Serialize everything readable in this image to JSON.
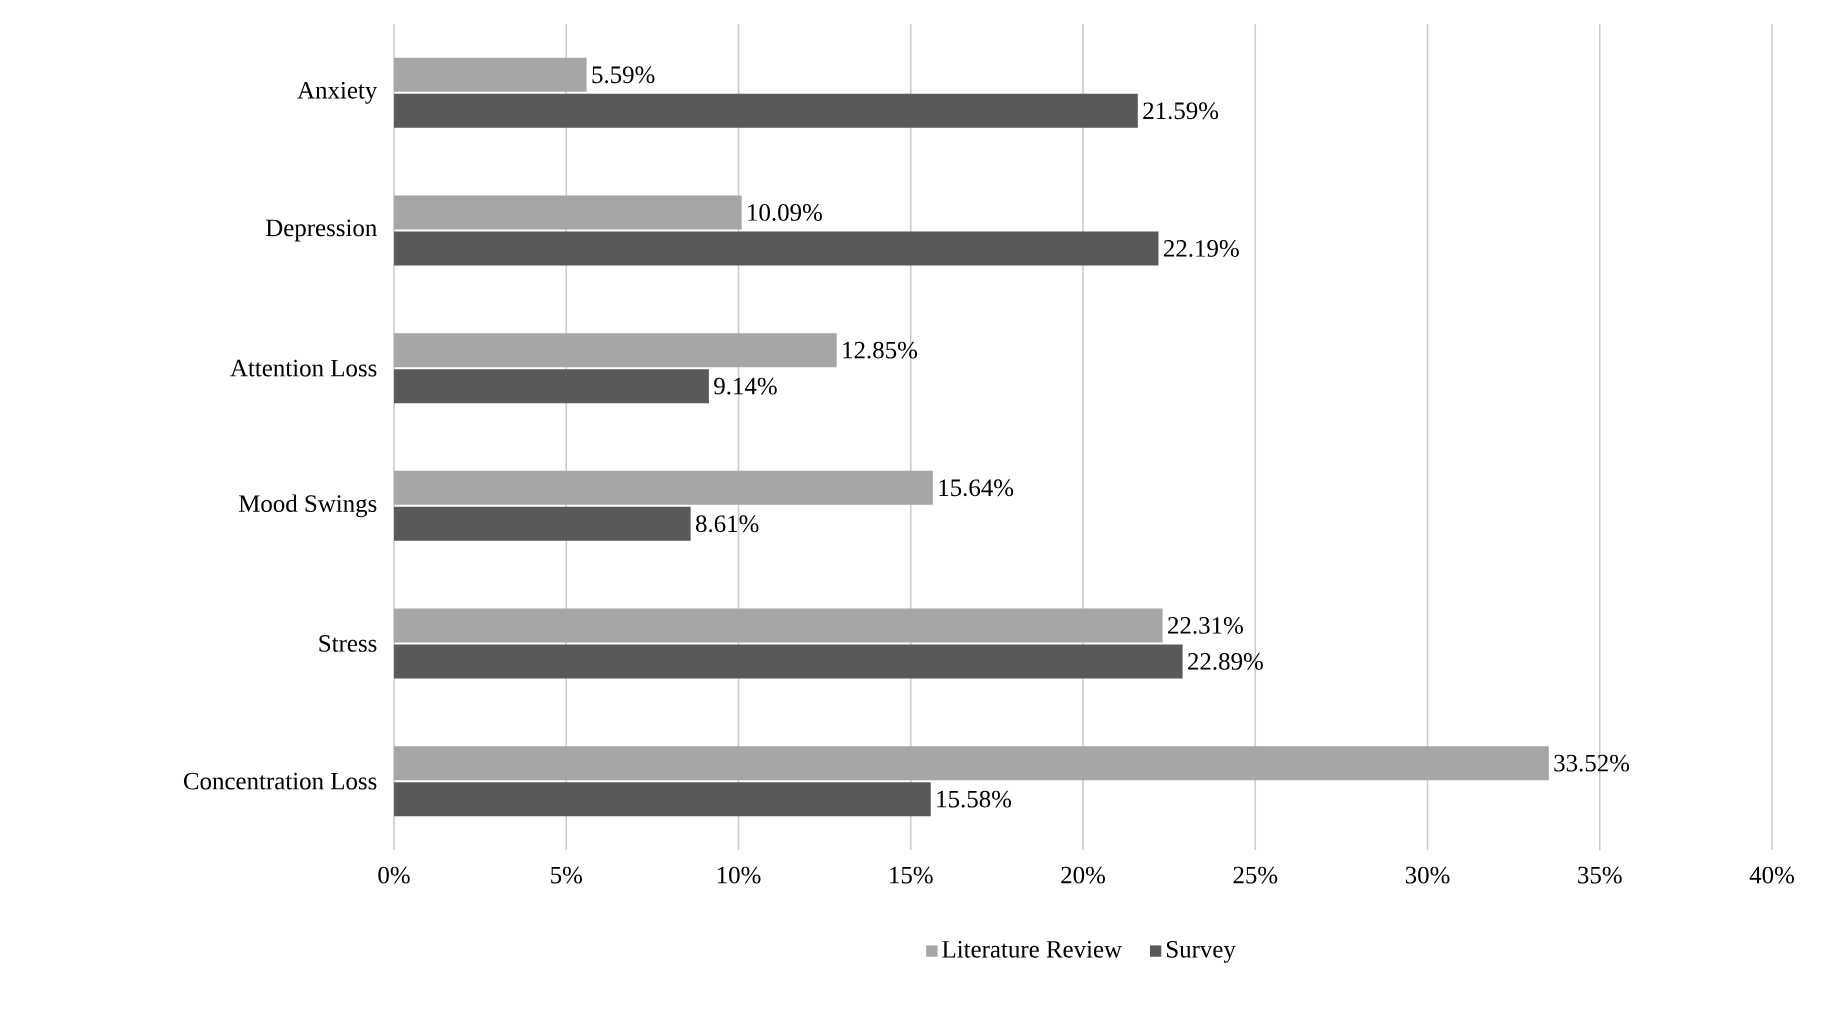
{
  "chart_data": {
    "type": "bar",
    "orientation": "horizontal",
    "categories": [
      "Anxiety",
      "Depression",
      "Attention Loss",
      "Mood Swings",
      "Stress",
      "Concentration Loss"
    ],
    "series": [
      {
        "name": "Literature Review",
        "color": "#a6a6a6",
        "values": [
          5.59,
          10.09,
          12.85,
          15.64,
          22.31,
          33.52
        ],
        "value_labels": [
          "5.59%",
          "10.09%",
          "12.85%",
          "15.64%",
          "22.31%",
          "33.52%"
        ]
      },
      {
        "name": "Survey",
        "color": "#595959",
        "values": [
          21.59,
          22.19,
          9.14,
          8.61,
          22.89,
          15.58
        ],
        "value_labels": [
          "21.59%",
          "22.19%",
          "9.14%",
          "8.61%",
          "22.89%",
          "15.58%"
        ]
      }
    ],
    "xlim": [
      0,
      40
    ],
    "xticks": [
      {
        "value": 0,
        "label": "0%"
      },
      {
        "value": 5,
        "label": "5%"
      },
      {
        "value": 10,
        "label": "10%"
      },
      {
        "value": 15,
        "label": "15%"
      },
      {
        "value": 20,
        "label": "20%"
      },
      {
        "value": 25,
        "label": "25%"
      },
      {
        "value": 30,
        "label": "30%"
      },
      {
        "value": 35,
        "label": "35%"
      },
      {
        "value": 40,
        "label": "40%"
      }
    ],
    "grid": "x",
    "legend": "bottom"
  }
}
